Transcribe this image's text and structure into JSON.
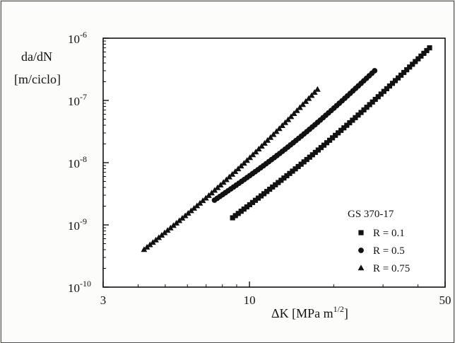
{
  "chart_data": {
    "type": "scatter",
    "xscale": "log",
    "yscale": "log",
    "xlim": [
      3,
      50
    ],
    "ylim": [
      1e-10,
      1e-06
    ],
    "x_ticks": [
      {
        "value": 3,
        "label": "3"
      },
      {
        "value": 10,
        "label": "10"
      },
      {
        "value": 50,
        "label": "50"
      }
    ],
    "y_ticks": [
      {
        "value": 1e-06,
        "label": "10",
        "exp": "-6"
      },
      {
        "value": 1e-07,
        "label": "10",
        "exp": "-7"
      },
      {
        "value": 1e-08,
        "label": "10",
        "exp": "-8"
      },
      {
        "value": 1e-09,
        "label": "10",
        "exp": "-9"
      },
      {
        "value": 1e-10,
        "label": "10",
        "exp": "-10"
      }
    ],
    "ylabel_line1": "da/dN",
    "ylabel_line2": "[m/ciclo]",
    "xlabel_main": "ΔK [MPa m",
    "xlabel_exp": "1/2",
    "xlabel_close": "]",
    "legend_title": "GS 370-17",
    "legend_position": "bottom-right",
    "series": [
      {
        "name": "R = 0.1",
        "marker": "square",
        "x_start": 8.7,
        "x_end": 44.0,
        "y_start": 1.3e-09,
        "y_end": 7e-07,
        "count": 70
      },
      {
        "name": "R = 0.5",
        "marker": "circle",
        "x_start": 7.5,
        "x_end": 28.0,
        "y_start": 2.5e-09,
        "y_end": 3e-07,
        "count": 60
      },
      {
        "name": "R = 0.75",
        "marker": "triangle",
        "x_start": 4.2,
        "x_end": 17.5,
        "y_start": 4e-10,
        "y_end": 1.5e-07,
        "count": 60
      }
    ]
  }
}
